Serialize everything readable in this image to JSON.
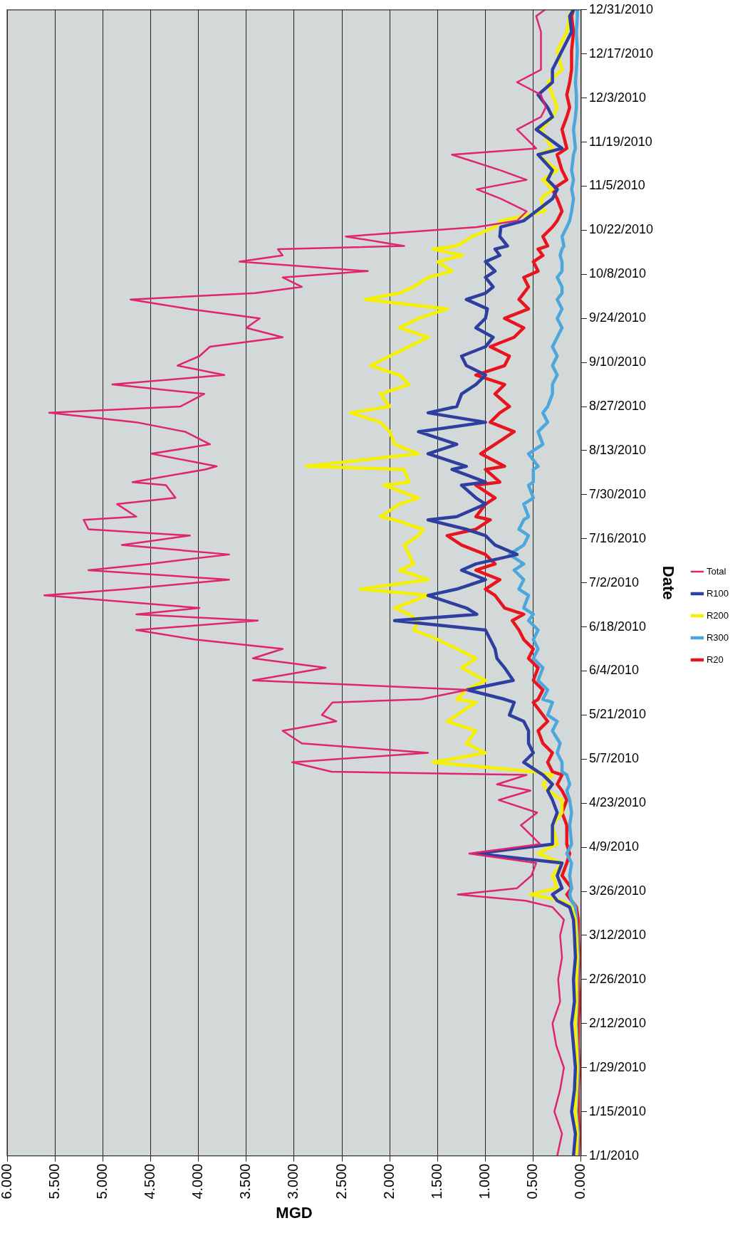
{
  "chart_data": {
    "type": "line",
    "orientation": "horizontal",
    "xlabel": "MGD",
    "ylabel": "Date",
    "legend": "right",
    "grid": "x",
    "marker": "none",
    "line_style": "solid",
    "ylim": [
      "2010-01-01",
      "2010-12-31"
    ],
    "yticks": [
      {
        "value": "2010-01-01",
        "label": "1/1/2010"
      },
      {
        "value": "2010-01-15",
        "label": "1/15/2010"
      },
      {
        "value": "2010-01-29",
        "label": "1/29/2010"
      },
      {
        "value": "2010-02-12",
        "label": "2/12/2010"
      },
      {
        "value": "2010-02-26",
        "label": "2/26/2010"
      },
      {
        "value": "2010-03-12",
        "label": "3/12/2010"
      },
      {
        "value": "2010-03-26",
        "label": "3/26/2010"
      },
      {
        "value": "2010-04-09",
        "label": "4/9/2010"
      },
      {
        "value": "2010-04-23",
        "label": "4/23/2010"
      },
      {
        "value": "2010-05-07",
        "label": "5/7/2010"
      },
      {
        "value": "2010-05-21",
        "label": "5/21/2010"
      },
      {
        "value": "2010-06-04",
        "label": "6/4/2010"
      },
      {
        "value": "2010-06-18",
        "label": "6/18/2010"
      },
      {
        "value": "2010-07-02",
        "label": "7/2/2010"
      },
      {
        "value": "2010-07-16",
        "label": "7/16/2010"
      },
      {
        "value": "2010-07-30",
        "label": "7/30/2010"
      },
      {
        "value": "2010-08-13",
        "label": "8/13/2010"
      },
      {
        "value": "2010-08-27",
        "label": "8/27/2010"
      },
      {
        "value": "2010-09-10",
        "label": "9/10/2010"
      },
      {
        "value": "2010-09-24",
        "label": "9/24/2010"
      },
      {
        "value": "2010-10-08",
        "label": "10/8/2010"
      },
      {
        "value": "2010-10-22",
        "label": "10/22/2010"
      },
      {
        "value": "2010-11-05",
        "label": "11/5/2010"
      },
      {
        "value": "2010-11-19",
        "label": "11/19/2010"
      },
      {
        "value": "2010-12-03",
        "label": "12/3/2010"
      },
      {
        "value": "2010-12-17",
        "label": "12/17/2010"
      },
      {
        "value": "2010-12-31",
        "label": "12/31/2010"
      }
    ],
    "xlim": [
      6,
      0
    ],
    "xticks": [
      {
        "value": 0,
        "label": "0.000"
      },
      {
        "value": 0.5,
        "label": "0.500"
      },
      {
        "value": 1,
        "label": "1.000"
      },
      {
        "value": 1.5,
        "label": "1.500"
      },
      {
        "value": 2,
        "label": "2.000"
      },
      {
        "value": 2.5,
        "label": "2.500"
      },
      {
        "value": 3,
        "label": "3.000"
      },
      {
        "value": 3.5,
        "label": "3.500"
      },
      {
        "value": 4,
        "label": "4.000"
      },
      {
        "value": 4.5,
        "label": "4.500"
      },
      {
        "value": 5,
        "label": "5.000"
      },
      {
        "value": 5.5,
        "label": "5.500"
      },
      {
        "value": 6,
        "label": "6.000"
      }
    ],
    "x": [
      "2010-01-01",
      "2010-01-08",
      "2010-01-15",
      "2010-01-22",
      "2010-01-29",
      "2010-02-05",
      "2010-02-12",
      "2010-02-19",
      "2010-02-26",
      "2010-03-05",
      "2010-03-12",
      "2010-03-17",
      "2010-03-21",
      "2010-03-23",
      "2010-03-25",
      "2010-03-27",
      "2010-03-31",
      "2010-04-04",
      "2010-04-07",
      "2010-04-10",
      "2010-04-16",
      "2010-04-20",
      "2010-04-24",
      "2010-04-27",
      "2010-04-29",
      "2010-05-02",
      "2010-05-03",
      "2010-05-06",
      "2010-05-09",
      "2010-05-12",
      "2010-05-16",
      "2010-05-19",
      "2010-05-21",
      "2010-05-25",
      "2010-05-26",
      "2010-05-29",
      "2010-06-01",
      "2010-06-05",
      "2010-06-08",
      "2010-06-11",
      "2010-06-14",
      "2010-06-17",
      "2010-06-20",
      "2010-06-22",
      "2010-06-24",
      "2010-06-28",
      "2010-06-30",
      "2010-07-03",
      "2010-07-06",
      "2010-07-08",
      "2010-07-11",
      "2010-07-14",
      "2010-07-17",
      "2010-07-19",
      "2010-07-22",
      "2010-07-23",
      "2010-07-27",
      "2010-07-29",
      "2010-08-02",
      "2010-08-03",
      "2010-08-07",
      "2010-08-08",
      "2010-08-12",
      "2010-08-15",
      "2010-08-19",
      "2010-08-22",
      "2010-08-25",
      "2010-08-27",
      "2010-08-31",
      "2010-09-03",
      "2010-09-06",
      "2010-09-09",
      "2010-09-12",
      "2010-09-15",
      "2010-09-18",
      "2010-09-21",
      "2010-09-24",
      "2010-09-27",
      "2010-09-30",
      "2010-10-02",
      "2010-10-04",
      "2010-10-07",
      "2010-10-09",
      "2010-10-12",
      "2010-10-14",
      "2010-10-16",
      "2010-10-17",
      "2010-10-20",
      "2010-10-23",
      "2010-10-25",
      "2010-10-28",
      "2010-11-01",
      "2010-11-04",
      "2010-11-07",
      "2010-11-10",
      "2010-11-15",
      "2010-11-17",
      "2010-11-23",
      "2010-11-27",
      "2010-11-30",
      "2010-12-04",
      "2010-12-08",
      "2010-12-12",
      "2010-12-18",
      "2010-12-24",
      "2010-12-29",
      "2010-12-31"
    ],
    "series": [
      {
        "name": "Total",
        "color": "#e0246e",
        "values": [
          0.25,
          0.2,
          0.28,
          0.22,
          0.18,
          0.26,
          0.3,
          0.22,
          0.24,
          0.2,
          0.22,
          0.18,
          0.3,
          0.58,
          1.29,
          0.67,
          0.52,
          0.47,
          1.17,
          0.43,
          0.63,
          0.46,
          0.86,
          0.53,
          0.88,
          0.57,
          2.61,
          3.02,
          1.6,
          2.92,
          3.12,
          2.56,
          2.71,
          2.6,
          1.67,
          1.19,
          3.43,
          2.67,
          3.43,
          3.12,
          4.04,
          4.65,
          3.38,
          4.65,
          3.99,
          5.61,
          4.75,
          3.68,
          5.15,
          4.52,
          3.68,
          4.8,
          4.09,
          5.15,
          5.2,
          4.65,
          4.85,
          4.24,
          4.34,
          4.69,
          3.93,
          3.81,
          4.49,
          3.88,
          4.14,
          4.65,
          5.56,
          4.19,
          3.94,
          4.9,
          3.73,
          4.22,
          3.99,
          3.88,
          3.12,
          3.5,
          3.36,
          4.1,
          4.71,
          3.41,
          2.92,
          3.12,
          2.23,
          3.57,
          3.12,
          3.17,
          1.85,
          2.46,
          1.09,
          0.67,
          0.57,
          0.84,
          1.09,
          0.57,
          0.84,
          1.35,
          0.47,
          0.67,
          0.42,
          0.37,
          0.42,
          0.67,
          0.42,
          0.42,
          0.42,
          0.47,
          0.38
        ]
      },
      {
        "name": "R100",
        "color": "#2e3fa0",
        "values": [
          0.08,
          0.06,
          0.1,
          0.07,
          0.06,
          0.08,
          0.1,
          0.07,
          0.08,
          0.06,
          0.07,
          0.08,
          0.12,
          0.25,
          0.3,
          0.2,
          0.25,
          0.2,
          1.1,
          0.3,
          0.3,
          0.25,
          0.3,
          0.35,
          0.3,
          0.4,
          0.45,
          0.6,
          0.5,
          0.55,
          0.55,
          0.6,
          0.75,
          0.7,
          0.8,
          1.19,
          0.71,
          0.8,
          0.88,
          0.9,
          0.95,
          1.0,
          1.95,
          1.09,
          1.2,
          1.6,
          1.3,
          1.0,
          1.25,
          1.1,
          0.67,
          0.9,
          1.0,
          1.2,
          1.6,
          1.3,
          1.0,
          1.1,
          1.25,
          1.0,
          1.35,
          1.2,
          1.6,
          1.3,
          1.7,
          1.0,
          1.6,
          1.3,
          1.25,
          1.1,
          1.0,
          1.2,
          1.25,
          1.0,
          0.92,
          1.1,
          1.0,
          0.98,
          1.2,
          1.0,
          0.92,
          1.0,
          0.9,
          1.0,
          0.85,
          0.9,
          0.77,
          0.85,
          0.84,
          0.6,
          0.47,
          0.3,
          0.25,
          0.35,
          0.3,
          0.45,
          0.2,
          0.47,
          0.3,
          0.35,
          0.45,
          0.3,
          0.3,
          0.2,
          0.1,
          0.12,
          0.08
        ]
      },
      {
        "name": "R200",
        "color": "#f5f000",
        "values": [
          0.05,
          0.04,
          0.06,
          0.05,
          0.04,
          0.05,
          0.06,
          0.05,
          0.05,
          0.04,
          0.05,
          0.06,
          0.1,
          0.2,
          0.53,
          0.25,
          0.3,
          0.2,
          0.45,
          0.25,
          0.3,
          0.2,
          0.2,
          0.35,
          0.4,
          0.3,
          0.5,
          1.55,
          1.0,
          1.2,
          1.1,
          1.4,
          1.3,
          1.1,
          1.3,
          1.2,
          1.0,
          1.25,
          1.1,
          1.3,
          1.5,
          1.75,
          1.7,
          1.8,
          1.95,
          1.6,
          2.31,
          1.6,
          1.9,
          1.75,
          1.8,
          1.85,
          1.7,
          1.65,
          1.95,
          2.1,
          1.9,
          1.7,
          2.06,
          1.8,
          1.85,
          2.87,
          1.7,
          1.95,
          2.0,
          2.1,
          2.41,
          2.0,
          2.1,
          1.8,
          1.9,
          2.2,
          2.0,
          1.8,
          1.6,
          1.9,
          1.7,
          1.4,
          2.26,
          1.9,
          1.75,
          1.6,
          1.35,
          1.5,
          1.24,
          1.55,
          1.3,
          1.14,
          0.9,
          0.84,
          0.38,
          0.42,
          0.3,
          0.4,
          0.25,
          0.45,
          0.3,
          0.42,
          0.3,
          0.25,
          0.3,
          0.35,
          0.2,
          0.25,
          0.15,
          0.12,
          0.1
        ]
      },
      {
        "name": "R300",
        "color": "#4da6dc",
        "values": [
          0.04,
          0.03,
          0.05,
          0.04,
          0.03,
          0.04,
          0.05,
          0.04,
          0.04,
          0.03,
          0.04,
          0.05,
          0.06,
          0.1,
          0.12,
          0.1,
          0.12,
          0.1,
          0.15,
          0.1,
          0.12,
          0.1,
          0.12,
          0.15,
          0.12,
          0.15,
          0.2,
          0.2,
          0.25,
          0.22,
          0.3,
          0.25,
          0.35,
          0.3,
          0.4,
          0.35,
          0.45,
          0.4,
          0.5,
          0.45,
          0.5,
          0.45,
          0.55,
          0.5,
          0.6,
          0.55,
          0.65,
          0.6,
          0.7,
          0.6,
          0.75,
          0.6,
          0.55,
          0.65,
          0.6,
          0.55,
          0.6,
          0.5,
          0.55,
          0.5,
          0.5,
          0.45,
          0.55,
          0.4,
          0.45,
          0.35,
          0.4,
          0.35,
          0.3,
          0.3,
          0.25,
          0.3,
          0.25,
          0.3,
          0.25,
          0.2,
          0.25,
          0.2,
          0.25,
          0.2,
          0.2,
          0.25,
          0.2,
          0.2,
          0.22,
          0.2,
          0.18,
          0.2,
          0.15,
          0.12,
          0.1,
          0.08,
          0.1,
          0.08,
          0.1,
          0.08,
          0.06,
          0.08,
          0.06,
          0.05,
          0.05,
          0.06,
          0.05,
          0.04,
          0.05,
          0.04,
          0.04
        ]
      },
      {
        "name": "R20",
        "color": "#e8141e",
        "values": [
          0.03,
          0.02,
          0.03,
          0.03,
          0.02,
          0.03,
          0.03,
          0.02,
          0.03,
          0.02,
          0.03,
          0.03,
          0.05,
          0.1,
          0.15,
          0.1,
          0.2,
          0.15,
          0.12,
          0.15,
          0.15,
          0.2,
          0.15,
          0.2,
          0.25,
          0.2,
          0.3,
          0.35,
          0.3,
          0.4,
          0.45,
          0.35,
          0.4,
          0.5,
          0.45,
          0.4,
          0.5,
          0.45,
          0.55,
          0.5,
          0.6,
          0.65,
          0.72,
          0.6,
          0.8,
          0.9,
          1.0,
          0.85,
          1.1,
          0.9,
          1.0,
          1.25,
          1.4,
          1.1,
          0.95,
          1.1,
          1.0,
          0.9,
          1.1,
          0.85,
          1.0,
          0.8,
          1.05,
          0.9,
          0.7,
          0.95,
          0.85,
          0.75,
          0.9,
          0.8,
          1.1,
          0.8,
          0.75,
          0.95,
          0.7,
          0.6,
          0.8,
          0.55,
          0.65,
          0.6,
          0.55,
          0.6,
          0.45,
          0.5,
          0.4,
          0.45,
          0.35,
          0.4,
          0.3,
          0.25,
          0.2,
          0.25,
          0.3,
          0.15,
          0.2,
          0.25,
          0.15,
          0.2,
          0.15,
          0.12,
          0.15,
          0.12,
          0.1,
          0.1,
          0.08,
          0.1,
          0.08
        ]
      }
    ]
  }
}
